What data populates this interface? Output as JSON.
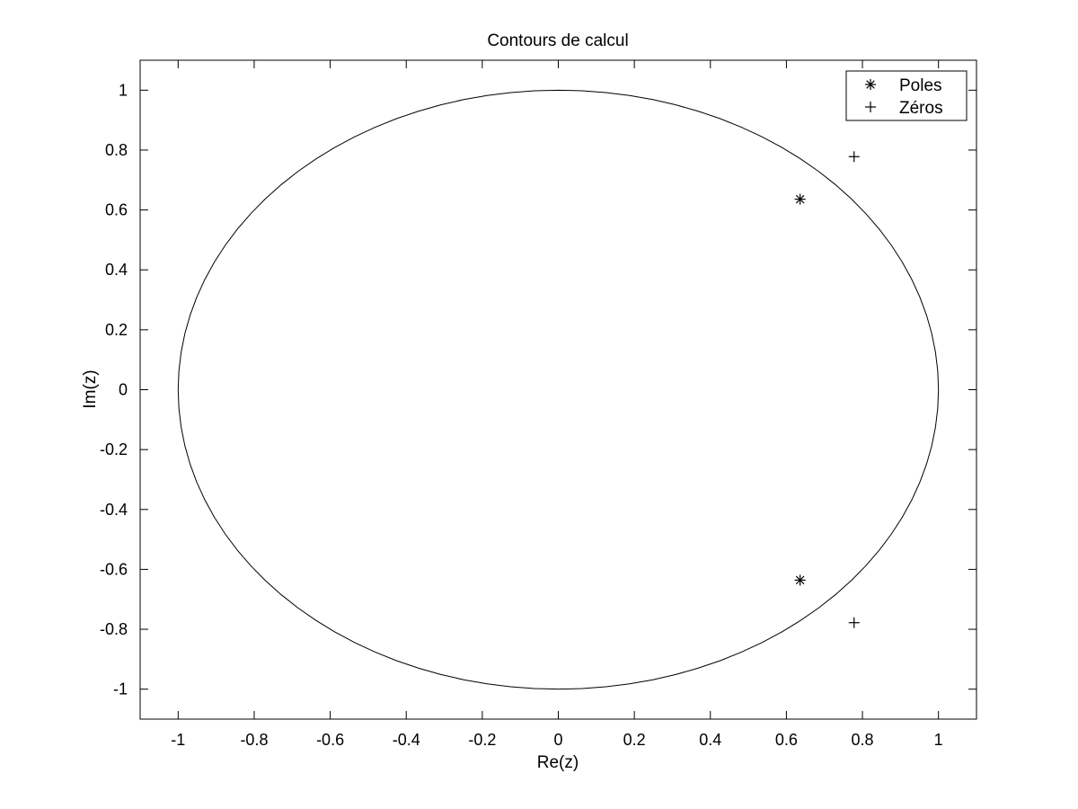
{
  "chart_data": {
    "type": "scatter",
    "title": "Contours de calcul",
    "xlabel": "Re(z)",
    "ylabel": "Im(z)",
    "xlim": [
      -1.1,
      1.1
    ],
    "ylim": [
      -1.1,
      1.1
    ],
    "xticks": [
      -1,
      -0.8,
      -0.6,
      -0.4,
      -0.2,
      0,
      0.2,
      0.4,
      0.6,
      0.8,
      1
    ],
    "yticks": [
      -1,
      -0.8,
      -0.6,
      -0.4,
      -0.2,
      0,
      0.2,
      0.4,
      0.6,
      0.8,
      1
    ],
    "xtick_labels": [
      "-1",
      "-0.8",
      "-0.6",
      "-0.4",
      "-0.2",
      "0",
      "0.2",
      "0.4",
      "0.6",
      "0.8",
      "1"
    ],
    "ytick_labels": [
      "-1",
      "-0.8",
      "-0.6",
      "-0.4",
      "-0.2",
      "0",
      "0.2",
      "0.4",
      "0.6",
      "0.8",
      "1"
    ],
    "grid": false,
    "legend_position": "top-right",
    "unit_circle": {
      "radius": 1,
      "center": [
        0,
        0
      ]
    },
    "series": [
      {
        "name": "Poles",
        "marker": "asterisk",
        "points": [
          [
            0.636,
            0.636
          ],
          [
            0.636,
            -0.636
          ]
        ]
      },
      {
        "name": "Zéros",
        "marker": "plus",
        "points": [
          [
            0.778,
            0.778
          ],
          [
            0.778,
            -0.778
          ]
        ]
      }
    ]
  }
}
